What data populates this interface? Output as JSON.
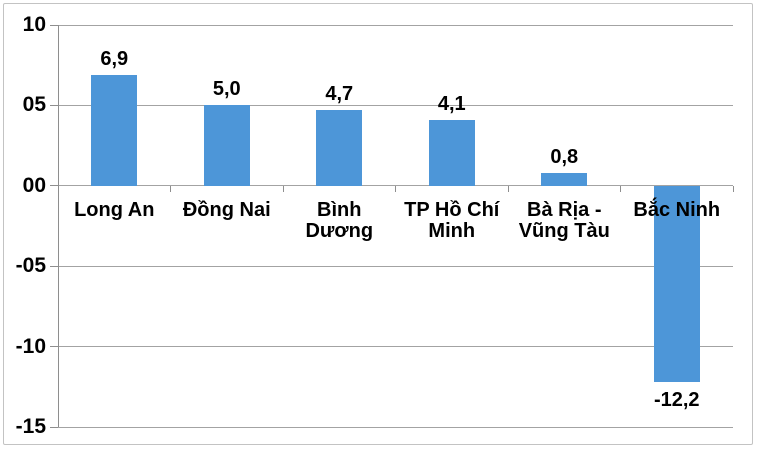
{
  "chart_data": {
    "type": "bar",
    "title": "",
    "categories": [
      "Long An",
      "Đồng Nai",
      "Bình\nDương",
      "TP Hồ Chí\nMinh",
      "Bà Rịa -\nVũng Tàu",
      "Bắc Ninh"
    ],
    "values": [
      6.9,
      5.0,
      4.7,
      4.1,
      0.8,
      -12.2
    ],
    "value_labels": [
      "6,9",
      "5,0",
      "4,7",
      "4,1",
      "0,8",
      "-12,2"
    ],
    "ylim": [
      -15,
      10
    ],
    "ytick_values": [
      10,
      5,
      0,
      -5,
      -10,
      -15
    ],
    "ytick_labels": [
      "10",
      "05",
      "00",
      "-05",
      "-10",
      "-15"
    ],
    "grid": true,
    "legend": false,
    "decimal_separator": ",",
    "colors": {
      "bar": "#4d96d8",
      "gridline": "#a3a3a3",
      "axis": "#8e8e8e",
      "frame_border": "#c3c3c3",
      "text": "#000000",
      "background": "#ffffff"
    }
  }
}
